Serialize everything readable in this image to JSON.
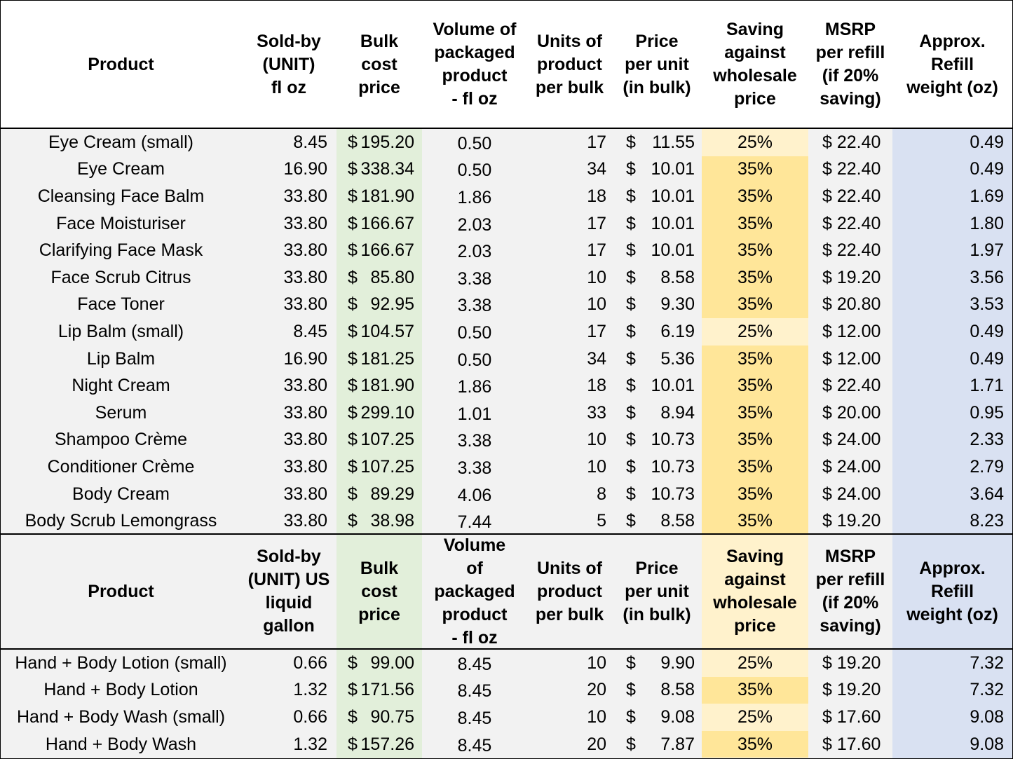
{
  "colors": {
    "background": "#f2f2f2",
    "bulk_column": "#e2efda",
    "saving_25": "#fff2cc",
    "saving_35": "#ffe699",
    "weight_column": "#d9e1f2"
  },
  "table1": {
    "headers": {
      "product": "Product",
      "sold_by": "Sold-by\n(UNIT)\nfl oz",
      "bulk_cost": "Bulk\ncost\nprice",
      "volume": "Volume of\npackaged\nproduct\n- fl oz",
      "units": "Units of\nproduct\nper bulk",
      "price_unit": "Price\nper unit\n(in bulk)",
      "saving": "Saving\nagainst\nwholesale\nprice",
      "msrp": "MSRP\nper refill\n(if 20%\nsaving)",
      "weight": "Approx.\nRefill\nweight (oz)"
    },
    "rows": [
      {
        "product": "Eye Cream (small)",
        "sold_by": "8.45",
        "bulk_cost": "195.20",
        "volume": "0.50",
        "units": "17",
        "price_unit": "11.55",
        "saving": "25%",
        "msrp": "$ 22.40",
        "weight": "0.49"
      },
      {
        "product": "Eye Cream",
        "sold_by": "16.90",
        "bulk_cost": "338.34",
        "volume": "0.50",
        "units": "34",
        "price_unit": "10.01",
        "saving": "35%",
        "msrp": "$ 22.40",
        "weight": "0.49"
      },
      {
        "product": "Cleansing Face Balm",
        "sold_by": "33.80",
        "bulk_cost": "181.90",
        "volume": "1.86",
        "units": "18",
        "price_unit": "10.01",
        "saving": "35%",
        "msrp": "$ 22.40",
        "weight": "1.69"
      },
      {
        "product": "Face Moisturiser",
        "sold_by": "33.80",
        "bulk_cost": "166.67",
        "volume": "2.03",
        "units": "17",
        "price_unit": "10.01",
        "saving": "35%",
        "msrp": "$ 22.40",
        "weight": "1.80"
      },
      {
        "product": "Clarifying Face Mask",
        "sold_by": "33.80",
        "bulk_cost": "166.67",
        "volume": "2.03",
        "units": "17",
        "price_unit": "10.01",
        "saving": "35%",
        "msrp": "$ 22.40",
        "weight": "1.97"
      },
      {
        "product": "Face Scrub Citrus",
        "sold_by": "33.80",
        "bulk_cost": "85.80",
        "volume": "3.38",
        "units": "10",
        "price_unit": "8.58",
        "saving": "35%",
        "msrp": "$ 19.20",
        "weight": "3.56"
      },
      {
        "product": "Face Toner",
        "sold_by": "33.80",
        "bulk_cost": "92.95",
        "volume": "3.38",
        "units": "10",
        "price_unit": "9.30",
        "saving": "35%",
        "msrp": "$ 20.80",
        "weight": "3.53"
      },
      {
        "product": "Lip Balm (small)",
        "sold_by": "8.45",
        "bulk_cost": "104.57",
        "volume": "0.50",
        "units": "17",
        "price_unit": "6.19",
        "saving": "25%",
        "msrp": "$ 12.00",
        "weight": "0.49"
      },
      {
        "product": "Lip Balm",
        "sold_by": "16.90",
        "bulk_cost": "181.25",
        "volume": "0.50",
        "units": "34",
        "price_unit": "5.36",
        "saving": "35%",
        "msrp": "$ 12.00",
        "weight": "0.49"
      },
      {
        "product": "Night Cream",
        "sold_by": "33.80",
        "bulk_cost": "181.90",
        "volume": "1.86",
        "units": "18",
        "price_unit": "10.01",
        "saving": "35%",
        "msrp": "$ 22.40",
        "weight": "1.71"
      },
      {
        "product": "Serum",
        "sold_by": "33.80",
        "bulk_cost": "299.10",
        "volume": "1.01",
        "units": "33",
        "price_unit": "8.94",
        "saving": "35%",
        "msrp": "$ 20.00",
        "weight": "0.95"
      },
      {
        "product": "Shampoo Crème",
        "sold_by": "33.80",
        "bulk_cost": "107.25",
        "volume": "3.38",
        "units": "10",
        "price_unit": "10.73",
        "saving": "35%",
        "msrp": "$ 24.00",
        "weight": "2.33"
      },
      {
        "product": "Conditioner Crème",
        "sold_by": "33.80",
        "bulk_cost": "107.25",
        "volume": "3.38",
        "units": "10",
        "price_unit": "10.73",
        "saving": "35%",
        "msrp": "$ 24.00",
        "weight": "2.79"
      },
      {
        "product": "Body Cream",
        "sold_by": "33.80",
        "bulk_cost": "89.29",
        "volume": "4.06",
        "units": "8",
        "price_unit": "10.73",
        "saving": "35%",
        "msrp": "$ 24.00",
        "weight": "3.64"
      },
      {
        "product": "Body Scrub Lemongrass",
        "sold_by": "33.80",
        "bulk_cost": "38.98",
        "volume": "7.44",
        "units": "5",
        "price_unit": "8.58",
        "saving": "35%",
        "msrp": "$ 19.20",
        "weight": "8.23"
      }
    ]
  },
  "table2": {
    "headers": {
      "product": "Product",
      "sold_by": "Sold-by\n(UNIT) US\nliquid\ngallon",
      "bulk_cost": "Bulk\ncost\nprice",
      "volume": "Volume\nof\npackaged\nproduct\n-  fl oz",
      "units": "Units of\nproduct\nper bulk",
      "price_unit": "Price\nper unit\n(in bulk)",
      "saving": "Saving\nagainst\nwholesale\nprice",
      "msrp": "MSRP\nper refill\n(if 20%\nsaving)",
      "weight": "Approx.\nRefill\nweight (oz)"
    },
    "rows": [
      {
        "product": "Hand + Body Lotion (small)",
        "sold_by": "0.66",
        "bulk_cost": "99.00",
        "volume": "8.45",
        "units": "10",
        "price_unit": "9.90",
        "saving": "25%",
        "msrp": "$ 19.20",
        "weight": "7.32"
      },
      {
        "product": "Hand + Body Lotion",
        "sold_by": "1.32",
        "bulk_cost": "171.56",
        "volume": "8.45",
        "units": "20",
        "price_unit": "8.58",
        "saving": "35%",
        "msrp": "$ 19.20",
        "weight": "7.32"
      },
      {
        "product": "Hand + Body Wash (small)",
        "sold_by": "0.66",
        "bulk_cost": "90.75",
        "volume": "8.45",
        "units": "10",
        "price_unit": "9.08",
        "saving": "25%",
        "msrp": "$ 17.60",
        "weight": "9.08"
      },
      {
        "product": "Hand + Body Wash",
        "sold_by": "1.32",
        "bulk_cost": "157.26",
        "volume": "8.45",
        "units": "20",
        "price_unit": "7.87",
        "saving": "35%",
        "msrp": "$ 17.60",
        "weight": "9.08"
      }
    ]
  },
  "currency_symbol": "$"
}
